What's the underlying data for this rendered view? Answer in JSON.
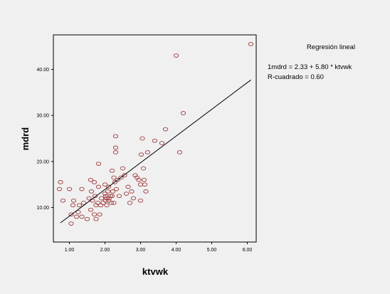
{
  "chart_data": {
    "type": "scatter",
    "xlabel": "ktvwk",
    "ylabel": "mdrd",
    "xlim": [
      0.55,
      6.25
    ],
    "ylim": [
      2.5,
      47.5
    ],
    "xticks": [
      1.0,
      2.0,
      3.0,
      4.0,
      5.0,
      6.0
    ],
    "xtick_labels": [
      "1.00",
      "2.00",
      "3.00",
      "4.00",
      "5.00",
      "6.00"
    ],
    "yticks": [
      10.0,
      20.0,
      30.0,
      40.0
    ],
    "ytick_labels": [
      "10.00",
      "20.00",
      "30.00",
      "40.00"
    ],
    "grid": false,
    "legend": {
      "title": "Regresión lineal",
      "equation": "1mdrd = 2.33 + 5.80 * ktvwk",
      "r_squared": "R-cuadrado = 0.60"
    },
    "regression": {
      "intercept": 2.33,
      "slope": 5.8,
      "x_range": [
        0.75,
        6.1
      ]
    },
    "marker_color": "#a03c3c",
    "points": [
      [
        0.75,
        15.5
      ],
      [
        0.72,
        14.0
      ],
      [
        0.82,
        11.5
      ],
      [
        1.0,
        14.0
      ],
      [
        1.05,
        8.5
      ],
      [
        1.05,
        6.5
      ],
      [
        1.1,
        10.5
      ],
      [
        1.12,
        11.5
      ],
      [
        1.2,
        8.0
      ],
      [
        1.25,
        9.0
      ],
      [
        1.28,
        10.5
      ],
      [
        1.35,
        14.0
      ],
      [
        1.35,
        8.0
      ],
      [
        1.4,
        11.0
      ],
      [
        1.5,
        7.5
      ],
      [
        1.55,
        12.0
      ],
      [
        1.6,
        16.0
      ],
      [
        1.62,
        13.5
      ],
      [
        1.6,
        9.5
      ],
      [
        1.65,
        11.5
      ],
      [
        1.7,
        8.5
      ],
      [
        1.7,
        15.5
      ],
      [
        1.72,
        12.5
      ],
      [
        1.75,
        10.5
      ],
      [
        1.75,
        7.5
      ],
      [
        1.8,
        11.0
      ],
      [
        1.82,
        19.5
      ],
      [
        1.82,
        14.5
      ],
      [
        1.85,
        8.5
      ],
      [
        1.88,
        10.5
      ],
      [
        1.9,
        12.0
      ],
      [
        1.95,
        11.0
      ],
      [
        2.0,
        15.0
      ],
      [
        2.0,
        13.0
      ],
      [
        2.02,
        12.5
      ],
      [
        2.02,
        11.5
      ],
      [
        2.05,
        12.0
      ],
      [
        2.05,
        10.5
      ],
      [
        2.08,
        13.5
      ],
      [
        2.1,
        14.5
      ],
      [
        2.1,
        11.5
      ],
      [
        2.12,
        12.0
      ],
      [
        2.15,
        12.5
      ],
      [
        2.18,
        11.0
      ],
      [
        2.2,
        18.0
      ],
      [
        2.2,
        12.5
      ],
      [
        2.22,
        13.5
      ],
      [
        2.25,
        16.5
      ],
      [
        2.25,
        11.0
      ],
      [
        2.28,
        15.5
      ],
      [
        2.3,
        25.5
      ],
      [
        2.3,
        23.0
      ],
      [
        2.3,
        22.0
      ],
      [
        2.32,
        14.0
      ],
      [
        2.35,
        16.0
      ],
      [
        2.4,
        12.5
      ],
      [
        2.45,
        16.5
      ],
      [
        2.5,
        18.5
      ],
      [
        2.55,
        17.0
      ],
      [
        2.6,
        13.0
      ],
      [
        2.65,
        14.5
      ],
      [
        2.7,
        11.0
      ],
      [
        2.75,
        13.5
      ],
      [
        2.8,
        12.0
      ],
      [
        2.85,
        17.0
      ],
      [
        2.9,
        16.5
      ],
      [
        2.95,
        16.0
      ],
      [
        3.0,
        15.0
      ],
      [
        3.0,
        11.5
      ],
      [
        3.02,
        21.5
      ],
      [
        3.05,
        25.0
      ],
      [
        3.08,
        18.5
      ],
      [
        3.1,
        16.0
      ],
      [
        3.12,
        15.0
      ],
      [
        3.15,
        13.5
      ],
      [
        3.2,
        22.0
      ],
      [
        3.4,
        24.5
      ],
      [
        3.6,
        24.0
      ],
      [
        3.7,
        27.0
      ],
      [
        4.0,
        43.0
      ],
      [
        4.1,
        22.0
      ],
      [
        4.2,
        30.5
      ],
      [
        6.1,
        45.5
      ]
    ]
  }
}
